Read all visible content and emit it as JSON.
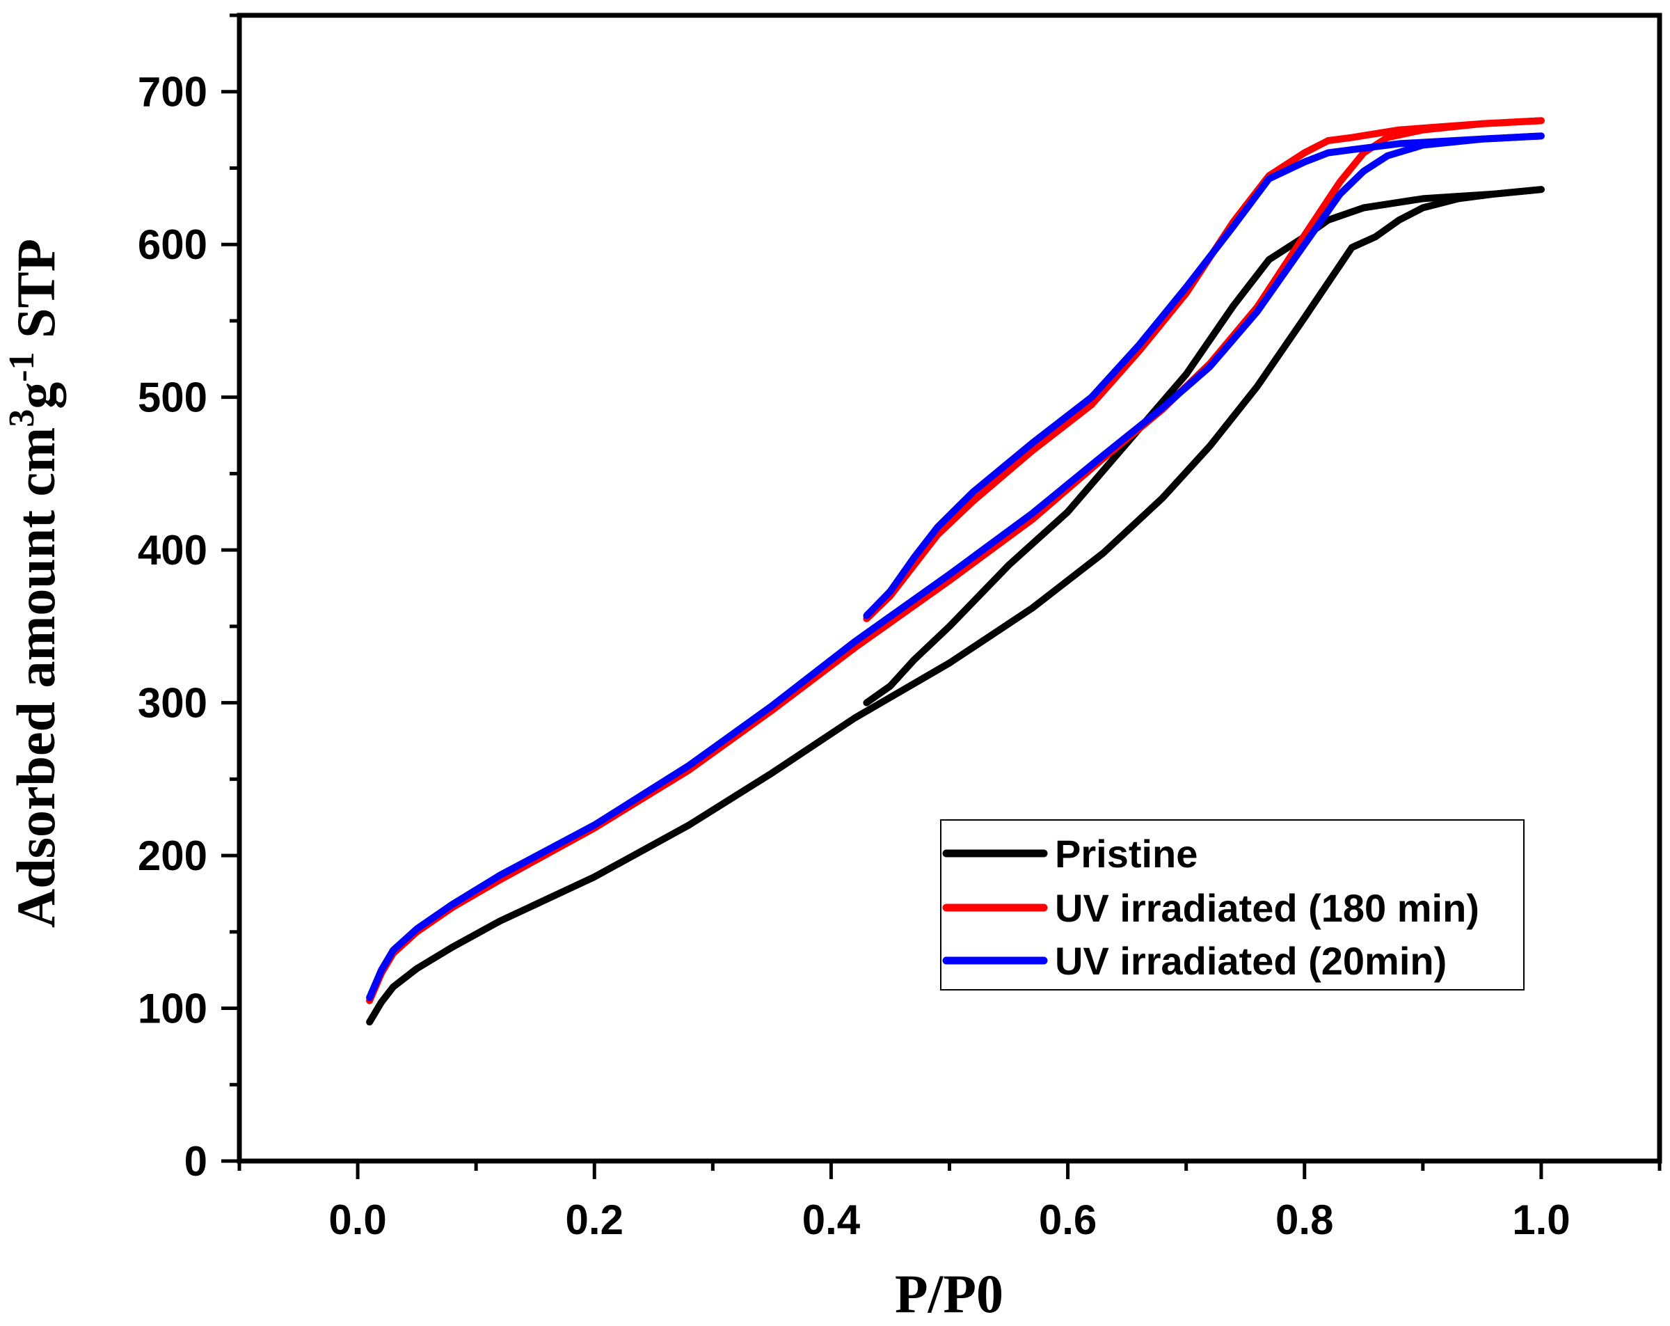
{
  "chart_data": {
    "type": "line",
    "title": "",
    "xlabel": "P/P0",
    "ylabel": {
      "main": "Adsorbed amount cm",
      "sup1": "3",
      "mid": "g",
      "sup2": "-1",
      "tail": " STP"
    },
    "xlim": [
      -0.1,
      1.1
    ],
    "ylim": [
      0,
      750
    ],
    "xticks": [
      0.0,
      0.2,
      0.4,
      0.6,
      0.8,
      1.0
    ],
    "xtick_labels": [
      "0.0",
      "0.2",
      "0.4",
      "0.6",
      "0.8",
      "1.0"
    ],
    "yticks": [
      0,
      100,
      200,
      300,
      400,
      500,
      600,
      700
    ],
    "ytick_labels": [
      "0",
      "100",
      "200",
      "300",
      "400",
      "500",
      "600",
      "700"
    ],
    "legend_position": "bottom-right",
    "series": [
      {
        "name": "Pristine",
        "color": "#000000",
        "adsorption": [
          [
            0.01,
            91
          ],
          [
            0.02,
            104
          ],
          [
            0.03,
            114
          ],
          [
            0.05,
            126
          ],
          [
            0.08,
            140
          ],
          [
            0.12,
            157
          ],
          [
            0.2,
            186
          ],
          [
            0.28,
            220
          ],
          [
            0.35,
            254
          ],
          [
            0.42,
            290
          ],
          [
            0.5,
            326
          ],
          [
            0.57,
            362
          ],
          [
            0.63,
            398
          ],
          [
            0.68,
            434
          ],
          [
            0.72,
            468
          ],
          [
            0.76,
            507
          ],
          [
            0.8,
            552
          ],
          [
            0.84,
            598
          ],
          [
            0.86,
            605
          ],
          [
            0.88,
            616
          ],
          [
            0.9,
            624
          ],
          [
            0.93,
            630
          ],
          [
            0.96,
            633
          ],
          [
            1.0,
            636
          ]
        ],
        "desorption": [
          [
            1.0,
            636
          ],
          [
            0.96,
            633
          ],
          [
            0.9,
            630
          ],
          [
            0.85,
            624
          ],
          [
            0.82,
            616
          ],
          [
            0.8,
            605
          ],
          [
            0.77,
            590
          ],
          [
            0.74,
            560
          ],
          [
            0.7,
            515
          ],
          [
            0.65,
            470
          ],
          [
            0.6,
            425
          ],
          [
            0.55,
            390
          ],
          [
            0.5,
            350
          ],
          [
            0.47,
            328
          ],
          [
            0.45,
            311
          ],
          [
            0.43,
            300
          ]
        ]
      },
      {
        "name": "UV irradiated (180 min)",
        "color": "#ff0000",
        "adsorption": [
          [
            0.01,
            105
          ],
          [
            0.02,
            123
          ],
          [
            0.03,
            136
          ],
          [
            0.05,
            150
          ],
          [
            0.08,
            166
          ],
          [
            0.12,
            184
          ],
          [
            0.2,
            218
          ],
          [
            0.28,
            256
          ],
          [
            0.35,
            295
          ],
          [
            0.42,
            336
          ],
          [
            0.5,
            380
          ],
          [
            0.57,
            420
          ],
          [
            0.63,
            460
          ],
          [
            0.68,
            492
          ],
          [
            0.72,
            522
          ],
          [
            0.76,
            559
          ],
          [
            0.8,
            606
          ],
          [
            0.83,
            641
          ],
          [
            0.85,
            660
          ],
          [
            0.87,
            670
          ],
          [
            0.9,
            675
          ],
          [
            0.95,
            679
          ],
          [
            1.0,
            681
          ]
        ],
        "desorption": [
          [
            1.0,
            681
          ],
          [
            0.95,
            679
          ],
          [
            0.88,
            675
          ],
          [
            0.84,
            670
          ],
          [
            0.82,
            668
          ],
          [
            0.8,
            660
          ],
          [
            0.77,
            645
          ],
          [
            0.74,
            615
          ],
          [
            0.7,
            568
          ],
          [
            0.66,
            530
          ],
          [
            0.62,
            495
          ],
          [
            0.57,
            465
          ],
          [
            0.52,
            432
          ],
          [
            0.49,
            410
          ],
          [
            0.47,
            390
          ],
          [
            0.45,
            370
          ],
          [
            0.43,
            355
          ]
        ]
      },
      {
        "name": "UV irradiated (20min)",
        "color": "#0000ff",
        "adsorption": [
          [
            0.01,
            107
          ],
          [
            0.02,
            125
          ],
          [
            0.03,
            138
          ],
          [
            0.05,
            152
          ],
          [
            0.08,
            168
          ],
          [
            0.12,
            187
          ],
          [
            0.2,
            220
          ],
          [
            0.28,
            259
          ],
          [
            0.35,
            298
          ],
          [
            0.42,
            340
          ],
          [
            0.5,
            384
          ],
          [
            0.57,
            424
          ],
          [
            0.63,
            462
          ],
          [
            0.68,
            493
          ],
          [
            0.72,
            520
          ],
          [
            0.76,
            556
          ],
          [
            0.8,
            600
          ],
          [
            0.83,
            633
          ],
          [
            0.85,
            648
          ],
          [
            0.87,
            658
          ],
          [
            0.9,
            665
          ],
          [
            0.95,
            669
          ],
          [
            1.0,
            671
          ]
        ],
        "desorption": [
          [
            1.0,
            671
          ],
          [
            0.95,
            669
          ],
          [
            0.88,
            666
          ],
          [
            0.84,
            662
          ],
          [
            0.82,
            660
          ],
          [
            0.8,
            654
          ],
          [
            0.77,
            643
          ],
          [
            0.74,
            612
          ],
          [
            0.7,
            572
          ],
          [
            0.66,
            534
          ],
          [
            0.62,
            500
          ],
          [
            0.57,
            470
          ],
          [
            0.52,
            438
          ],
          [
            0.49,
            415
          ],
          [
            0.47,
            395
          ],
          [
            0.45,
            373
          ],
          [
            0.43,
            357
          ]
        ]
      }
    ]
  }
}
